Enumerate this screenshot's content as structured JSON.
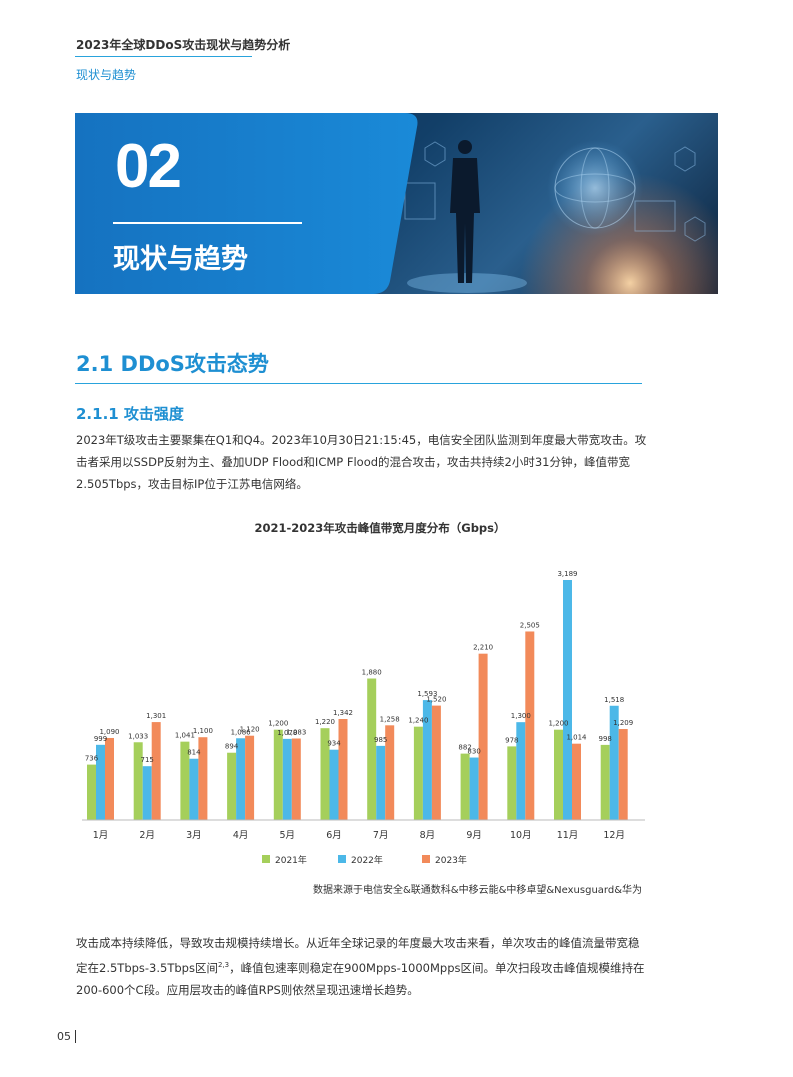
{
  "header": {
    "doc_title": "2023年全球DDoS攻击现状与趋势分析",
    "section_nav": "现状与趋势"
  },
  "banner": {
    "chapter_number": "02",
    "chapter_title": "现状与趋势"
  },
  "section": {
    "h2": "2.1 DDoS攻击态势",
    "h3": "2.1.1 攻击强度",
    "para1": "2023年T级攻击主要聚集在Q1和Q4。2023年10月30日21:15:45，电信安全团队监测到年度最大带宽攻击。攻击者采用以SSDP反射为主、叠加UDP Flood和ICMP Flood的混合攻击，攻击共持续2小时31分钟，峰值带宽2.505Tbps，攻击目标IP位于江苏电信网络。",
    "para2_a": "攻击成本持续降低，导致攻击规模持续增长。从近年全球记录的年度最大攻击来看，单次攻击的峰值流量带宽稳定在2.5Tbps-3.5Tbps区间",
    "para2_sup": "2,3",
    "para2_b": "，峰值包速率则稳定在900Mpps-1000Mpps区间。单次扫段攻击峰值规模维持在200-600个C段。应用层攻击的峰值RPS则依然呈现迅速增长趋势。"
  },
  "chart_data": {
    "type": "bar",
    "title": "2021-2023年攻击峰值带宽月度分布（Gbps）",
    "categories": [
      "1月",
      "2月",
      "3月",
      "4月",
      "5月",
      "6月",
      "7月",
      "8月",
      "9月",
      "10月",
      "11月",
      "12月"
    ],
    "series": [
      {
        "name": "2021年",
        "color": "#a5cf5b",
        "values": [
          736,
          1033,
          1041,
          894,
          1200,
          1220,
          1880,
          1240,
          882,
          978,
          1200,
          998
        ],
        "labels": [
          "736",
          "1,033",
          "1,041",
          "894",
          "1,200",
          "1,220",
          "1,880",
          "1,240",
          "882",
          "978",
          "1,200",
          "998"
        ]
      },
      {
        "name": "2022年",
        "color": "#4cb8e8",
        "values": [
          999,
          715,
          814,
          1086,
          1078,
          934,
          985,
          1593,
          830,
          1300,
          3189,
          1518
        ],
        "labels": [
          "999",
          "715",
          "814",
          "1,086",
          "1,078",
          "934",
          "985",
          "1,593",
          "830",
          "1,300",
          "3,189",
          "1,518"
        ]
      },
      {
        "name": "2023年",
        "color": "#f28a5a",
        "values": [
          1090,
          1301,
          1100,
          1120,
          1083,
          1342,
          1258,
          1520,
          2210,
          2505,
          1014,
          1209
        ],
        "labels": [
          "1,090",
          "1,301",
          "1,100",
          "1,120",
          "1,083",
          "1,342",
          "1,258",
          "1,520",
          "2,210",
          "2,505",
          "1,014",
          "1,209"
        ]
      }
    ],
    "ylim": [
      0,
      3189
    ],
    "legend_position": "bottom",
    "source": "数据来源于电信安全&联通数科&中移云能&中移卓望&Nexusguard&华为"
  },
  "footer": {
    "page_number": "05"
  }
}
